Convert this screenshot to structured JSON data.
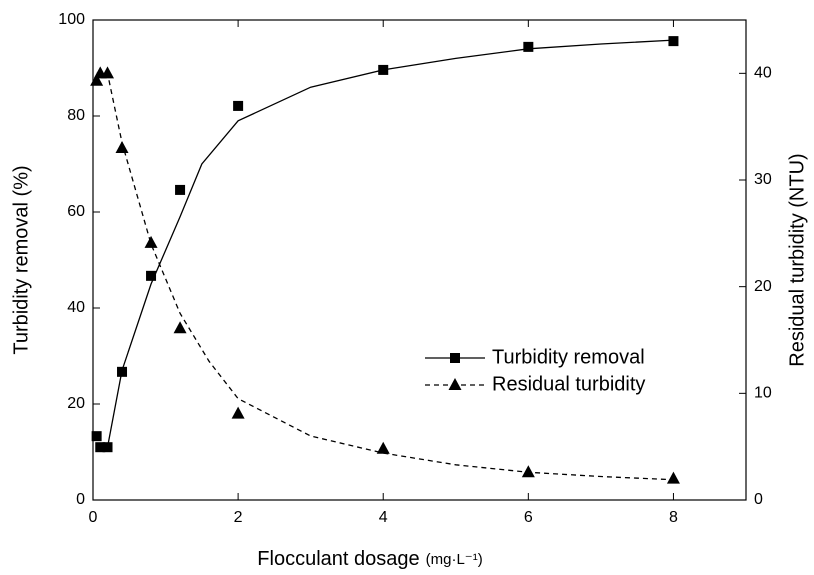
{
  "chart_data": {
    "type": "scatter",
    "x_label": "Flocculant dosage",
    "x_unit": "(mg·L⁻¹)",
    "y_label": "Turbidity removal  (%)",
    "y2_label": "Residual turbidity  (NTU)",
    "xlim": [
      0,
      9
    ],
    "xticks": [
      0,
      2,
      4,
      6,
      8
    ],
    "ylim": [
      0,
      100
    ],
    "yticks": [
      0,
      20,
      40,
      60,
      80,
      100
    ],
    "y2lim": [
      0,
      45
    ],
    "y2ticks": [
      0,
      10,
      20,
      30,
      40
    ],
    "series": [
      {
        "name": "Turbidity removal",
        "color": "#000000",
        "marker": "square",
        "dashed": false,
        "x": [
          0.05,
          0.1,
          0.2,
          0.4,
          0.8,
          1.2,
          2,
          4,
          6,
          8
        ],
        "values": [
          13.3,
          11,
          11,
          26.7,
          46.7,
          64.6,
          82.1,
          89.6,
          94.4,
          95.6
        ],
        "fit_x": [
          0.1,
          0.2,
          0.4,
          0.8,
          1.2,
          1.5,
          2,
          3,
          4,
          5,
          6,
          7,
          8
        ],
        "fit_values": [
          11,
          11,
          27,
          45,
          59,
          70,
          79,
          86,
          89.6,
          92,
          94,
          95,
          95.8
        ]
      },
      {
        "name": "Residual turbidity",
        "color": "#000000",
        "marker": "triangle",
        "dashed": true,
        "axis": "y2",
        "x": [
          0.05,
          0.1,
          0.2,
          0.4,
          0.8,
          1.2,
          2,
          4,
          6,
          8
        ],
        "values": [
          39.3,
          40,
          40,
          33,
          24.1,
          16.1,
          8.1,
          4.8,
          2.6,
          2.0
        ],
        "fit_x": [
          0.05,
          0.2,
          0.4,
          0.8,
          1.2,
          1.6,
          2,
          3,
          4,
          5,
          6,
          7,
          8
        ],
        "fit_values": [
          40,
          40,
          33.5,
          24,
          17.5,
          13,
          9.5,
          6,
          4.4,
          3.3,
          2.6,
          2.2,
          1.9
        ]
      }
    ]
  }
}
